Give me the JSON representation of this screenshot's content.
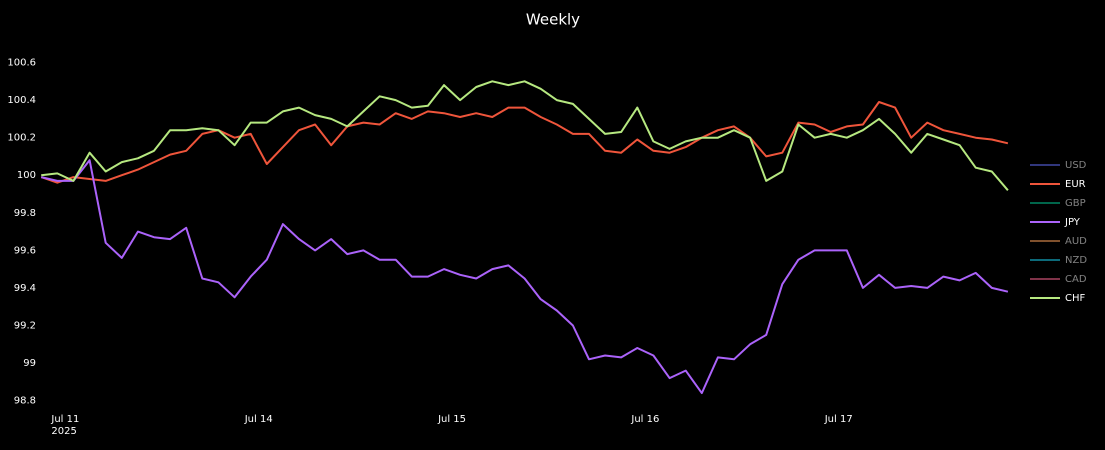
{
  "chart_data": {
    "type": "line",
    "title": "Weekly",
    "x": [
      21,
      23,
      25,
      27,
      29,
      31,
      33,
      35,
      37,
      39,
      41,
      43,
      45,
      47,
      49,
      51,
      53,
      55,
      57,
      59,
      61,
      63,
      65,
      67,
      69,
      71,
      73,
      75,
      77,
      79,
      81,
      83,
      85,
      87,
      89,
      91,
      93,
      95,
      97,
      99,
      101,
      103,
      105,
      107,
      109,
      111,
      113,
      115,
      117,
      119,
      121,
      123,
      125,
      127,
      129,
      131,
      133,
      135,
      137,
      139,
      141
    ],
    "xlim": [
      17,
      143
    ],
    "xticks": [
      {
        "value": 24,
        "label": "Jul 11\n2025"
      },
      {
        "value": 48,
        "label": "Jul 14"
      },
      {
        "value": 72,
        "label": "Jul 15"
      },
      {
        "value": 96,
        "label": "Jul 16"
      },
      {
        "value": 120,
        "label": "Jul 17"
      }
    ],
    "ylim": [
      98.75,
      100.72
    ],
    "yticks": [
      98.8,
      99,
      99.2,
      99.4,
      99.6,
      99.8,
      100,
      100.2,
      100.4,
      100.6
    ],
    "grid": false,
    "legend_position": "right",
    "series": [
      {
        "name": "USD",
        "color": "#636efa",
        "visible": false
      },
      {
        "name": "EUR",
        "color": "#ef553b",
        "visible": true,
        "values": [
          99.99,
          99.96,
          99.99,
          99.98,
          99.97,
          100.0,
          100.03,
          100.07,
          100.11,
          100.13,
          100.22,
          100.24,
          100.2,
          100.22,
          100.06,
          100.15,
          100.24,
          100.27,
          100.16,
          100.26,
          100.28,
          100.27,
          100.33,
          100.3,
          100.34,
          100.33,
          100.31,
          100.33,
          100.31,
          100.36,
          100.36,
          100.31,
          100.27,
          100.22,
          100.22,
          100.13,
          100.12,
          100.19,
          100.13,
          100.12,
          100.15,
          100.2,
          100.24,
          100.26,
          100.2,
          100.1,
          100.12,
          100.28,
          100.27,
          100.23,
          100.26,
          100.27,
          100.39,
          100.36,
          100.2,
          100.28,
          100.24,
          100.22,
          100.2,
          100.19,
          100.17
        ]
      },
      {
        "name": "GBP",
        "color": "#00cc96",
        "visible": false
      },
      {
        "name": "JPY",
        "color": "#ab63fa",
        "visible": true,
        "values": [
          99.99,
          99.97,
          99.97,
          100.08,
          99.64,
          99.56,
          99.7,
          99.67,
          99.66,
          99.72,
          99.45,
          99.43,
          99.35,
          99.46,
          99.55,
          99.74,
          99.66,
          99.6,
          99.66,
          99.58,
          99.6,
          99.55,
          99.55,
          99.46,
          99.46,
          99.5,
          99.47,
          99.45,
          99.5,
          99.52,
          99.45,
          99.34,
          99.28,
          99.2,
          99.02,
          99.04,
          99.03,
          99.08,
          99.04,
          98.92,
          98.96,
          98.84,
          99.03,
          99.02,
          99.1,
          99.15,
          99.42,
          99.55,
          99.6,
          99.6,
          99.6,
          99.4,
          99.47,
          99.4,
          99.41,
          99.4,
          99.46,
          99.44,
          99.48,
          99.4,
          99.38
        ]
      },
      {
        "name": "AUD",
        "color": "#ffa15a",
        "visible": false
      },
      {
        "name": "NZD",
        "color": "#19d3f3",
        "visible": false
      },
      {
        "name": "CAD",
        "color": "#ff6692",
        "visible": false
      },
      {
        "name": "CHF",
        "color": "#b6e880",
        "visible": true,
        "values": [
          100.0,
          100.01,
          99.97,
          100.12,
          100.02,
          100.07,
          100.09,
          100.13,
          100.24,
          100.24,
          100.25,
          100.24,
          100.16,
          100.28,
          100.28,
          100.34,
          100.36,
          100.32,
          100.3,
          100.26,
          100.34,
          100.42,
          100.4,
          100.36,
          100.37,
          100.48,
          100.4,
          100.47,
          100.5,
          100.48,
          100.5,
          100.46,
          100.4,
          100.38,
          100.3,
          100.22,
          100.23,
          100.36,
          100.18,
          100.14,
          100.18,
          100.2,
          100.2,
          100.24,
          100.2,
          99.97,
          100.02,
          100.27,
          100.2,
          100.22,
          100.2,
          100.24,
          100.3,
          100.22,
          100.12,
          100.22,
          100.19,
          100.16,
          100.04,
          100.02,
          99.92
        ]
      }
    ]
  }
}
